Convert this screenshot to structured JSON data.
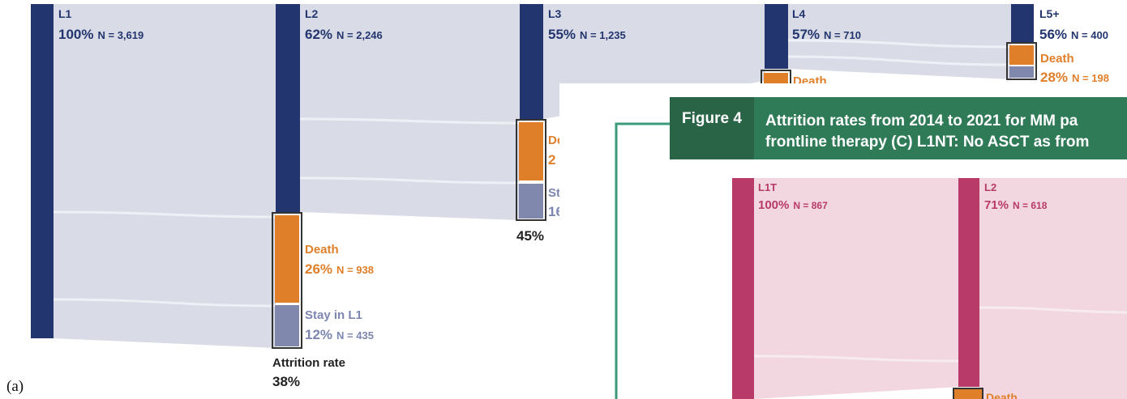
{
  "figure_a": {
    "panel_label": "(a)",
    "nodes": [
      {
        "name": "L1",
        "percent": "100%",
        "n": "N = 3,619"
      },
      {
        "name": "L2",
        "percent": "62%",
        "n": "N = 2,246"
      },
      {
        "name": "L3",
        "percent": "55%",
        "n": "N = 1,235"
      },
      {
        "name": "L4",
        "percent": "57%",
        "n": "N = 710"
      },
      {
        "name": "L5+",
        "percent": "56%",
        "n": "N = 400"
      }
    ],
    "outcomes_l2": {
      "death": "Death",
      "death_percent": "26%",
      "death_n": "N = 938",
      "stay": "Stay in L1",
      "stay_percent": "12%",
      "stay_n": "N = 435"
    },
    "outcomes_l3": {
      "death": "De",
      "death_percent": "2",
      "stay": "St",
      "stay_percent": "16"
    },
    "outcomes_l4": {
      "death": "Death"
    },
    "outcomes_l5": {
      "death": "Death",
      "death_percent": "28%",
      "death_n": "N = 198"
    },
    "attrition_label": "Attrition rate",
    "attrition_rates": [
      "38%",
      "45%"
    ]
  },
  "figure_4": {
    "label": "Figure 4",
    "title_lines": [
      "Attrition rates from 2014 to 2021 for MM pa",
      "frontline therapy (C) L1NT: No ASCT as from"
    ],
    "nodes": [
      {
        "name": "L1T",
        "percent": "100%",
        "n": "N = 867"
      },
      {
        "name": "L2",
        "percent": "71%",
        "n": "N = 618"
      }
    ],
    "death": "Death"
  }
}
